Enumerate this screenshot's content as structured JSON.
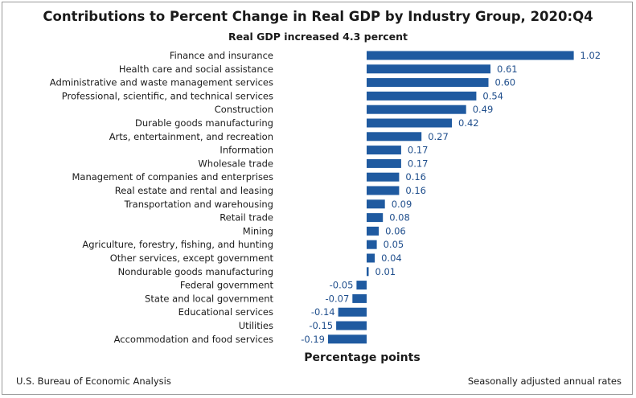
{
  "chart_data": {
    "type": "bar",
    "orientation": "horizontal",
    "title": "Contributions to Percent Change in Real GDP by Industry Group, 2020:Q4",
    "subtitle": "Real GDP increased 4.3 percent",
    "xlabel": "Percentage points",
    "ylabel": "",
    "xlim": [
      -0.22,
      1.06
    ],
    "grid": false,
    "legend": "none",
    "bar_color": "#1f5aa0",
    "label_color": "#1f4e8c",
    "categories": [
      "Finance and insurance",
      "Health care and social assistance",
      "Administrative and waste management services",
      "Professional, scientific, and technical services",
      "Construction",
      "Durable goods manufacturing",
      "Arts, entertainment, and recreation",
      "Information",
      "Wholesale trade",
      "Management of companies and enterprises",
      "Real estate and rental and leasing",
      "Transportation and warehousing",
      "Retail trade",
      "Mining",
      "Agriculture, forestry, fishing, and hunting",
      "Other services, except government",
      "Nondurable goods manufacturing",
      "Federal government",
      "State and local government",
      "Educational services",
      "Utilities",
      "Accommodation and food services"
    ],
    "values": [
      1.02,
      0.61,
      0.6,
      0.54,
      0.49,
      0.42,
      0.27,
      0.17,
      0.17,
      0.16,
      0.16,
      0.09,
      0.08,
      0.06,
      0.05,
      0.04,
      0.01,
      -0.05,
      -0.07,
      -0.14,
      -0.15,
      -0.19
    ],
    "value_labels": [
      "1.02",
      "0.61",
      "0.60",
      "0.54",
      "0.49",
      "0.42",
      "0.27",
      "0.17",
      "0.17",
      "0.16",
      "0.16",
      "0.09",
      "0.08",
      "0.06",
      "0.05",
      "0.04",
      "0.01",
      "-0.05",
      "-0.07",
      "-0.14",
      "-0.15",
      "-0.19"
    ]
  },
  "footer": {
    "source": "U.S. Bureau of Economic Analysis",
    "note": "Seasonally adjusted annual rates"
  }
}
